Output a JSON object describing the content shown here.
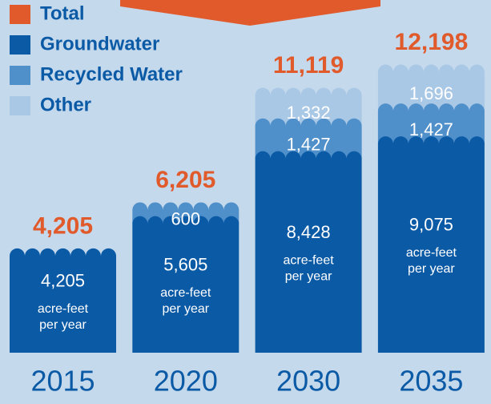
{
  "chart_data": {
    "type": "stacked-bar",
    "categories": [
      "2015",
      "2020",
      "2030",
      "2035"
    ],
    "total": {
      "name": "Total",
      "color": "#e05a2b",
      "values": [
        4205,
        6205,
        11119,
        12198
      ],
      "value_labels": [
        "4,205",
        "6,205",
        "11,119",
        "12,198"
      ]
    },
    "series": [
      {
        "name": "Groundwater",
        "color": "#0b5aa6",
        "values": [
          4205,
          5605,
          8428,
          9075
        ],
        "value_labels": [
          "4,205",
          "5,605",
          "8,428",
          "9,075"
        ]
      },
      {
        "name": "Recycled Water",
        "color": "#4f8fca",
        "values": [
          null,
          600,
          1427,
          1427
        ],
        "value_labels": [
          null,
          "600",
          "1,427",
          "1,427"
        ]
      },
      {
        "name": "Other",
        "color": "#a9c8e6",
        "values": [
          null,
          null,
          1332,
          1696
        ],
        "value_labels": [
          null,
          null,
          "1,332",
          "1,696"
        ]
      }
    ],
    "unit_lines": [
      "acre-feet",
      "per year"
    ]
  }
}
